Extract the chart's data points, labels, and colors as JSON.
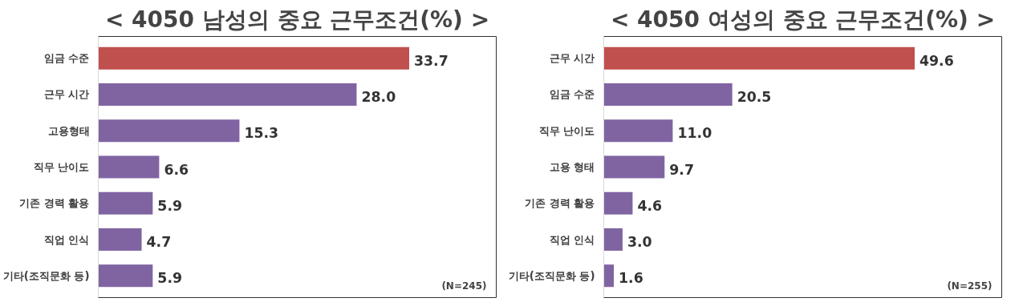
{
  "chart_data": [
    {
      "type": "bar",
      "orientation": "horizontal",
      "title": "< 4050 남성의 중요 근무조건(%) >",
      "categories": [
        "임금 수준",
        "근무 시간",
        "고용형태",
        "직무 난이도",
        "기존 경력 활용",
        "직업 인식",
        "기타(조직문화 등)"
      ],
      "values": [
        33.7,
        28.0,
        15.3,
        6.6,
        5.9,
        4.7,
        5.9
      ],
      "value_labels": [
        "33.7",
        "28.0",
        "15.3",
        "6.6",
        "5.9",
        "4.7",
        "5.9"
      ],
      "colors": [
        "#c0504d",
        "#8064a2",
        "#8064a2",
        "#8064a2",
        "#8064a2",
        "#8064a2",
        "#8064a2"
      ],
      "tick_labels": "y",
      "grid": false,
      "annotations": [
        "(N=245)"
      ]
    },
    {
      "type": "bar",
      "orientation": "horizontal",
      "title": "< 4050 여성의 중요 근무조건(%) >",
      "categories": [
        "근무 시간",
        "임금 수준",
        "직무 난이도",
        "고용 형태",
        "기존 경력 활용",
        "직업 인식",
        "기타(조직문화 등)"
      ],
      "values": [
        49.6,
        20.5,
        11.0,
        9.7,
        4.6,
        3.0,
        1.6
      ],
      "value_labels": [
        "49.6",
        "20.5",
        "11.0",
        "9.7",
        "4.6",
        "3.0",
        "1.6"
      ],
      "colors": [
        "#c0504d",
        "#8064a2",
        "#8064a2",
        "#8064a2",
        "#8064a2",
        "#8064a2",
        "#8064a2"
      ],
      "tick_labels": "y",
      "grid": false,
      "annotations": [
        "(N=255)"
      ]
    }
  ]
}
